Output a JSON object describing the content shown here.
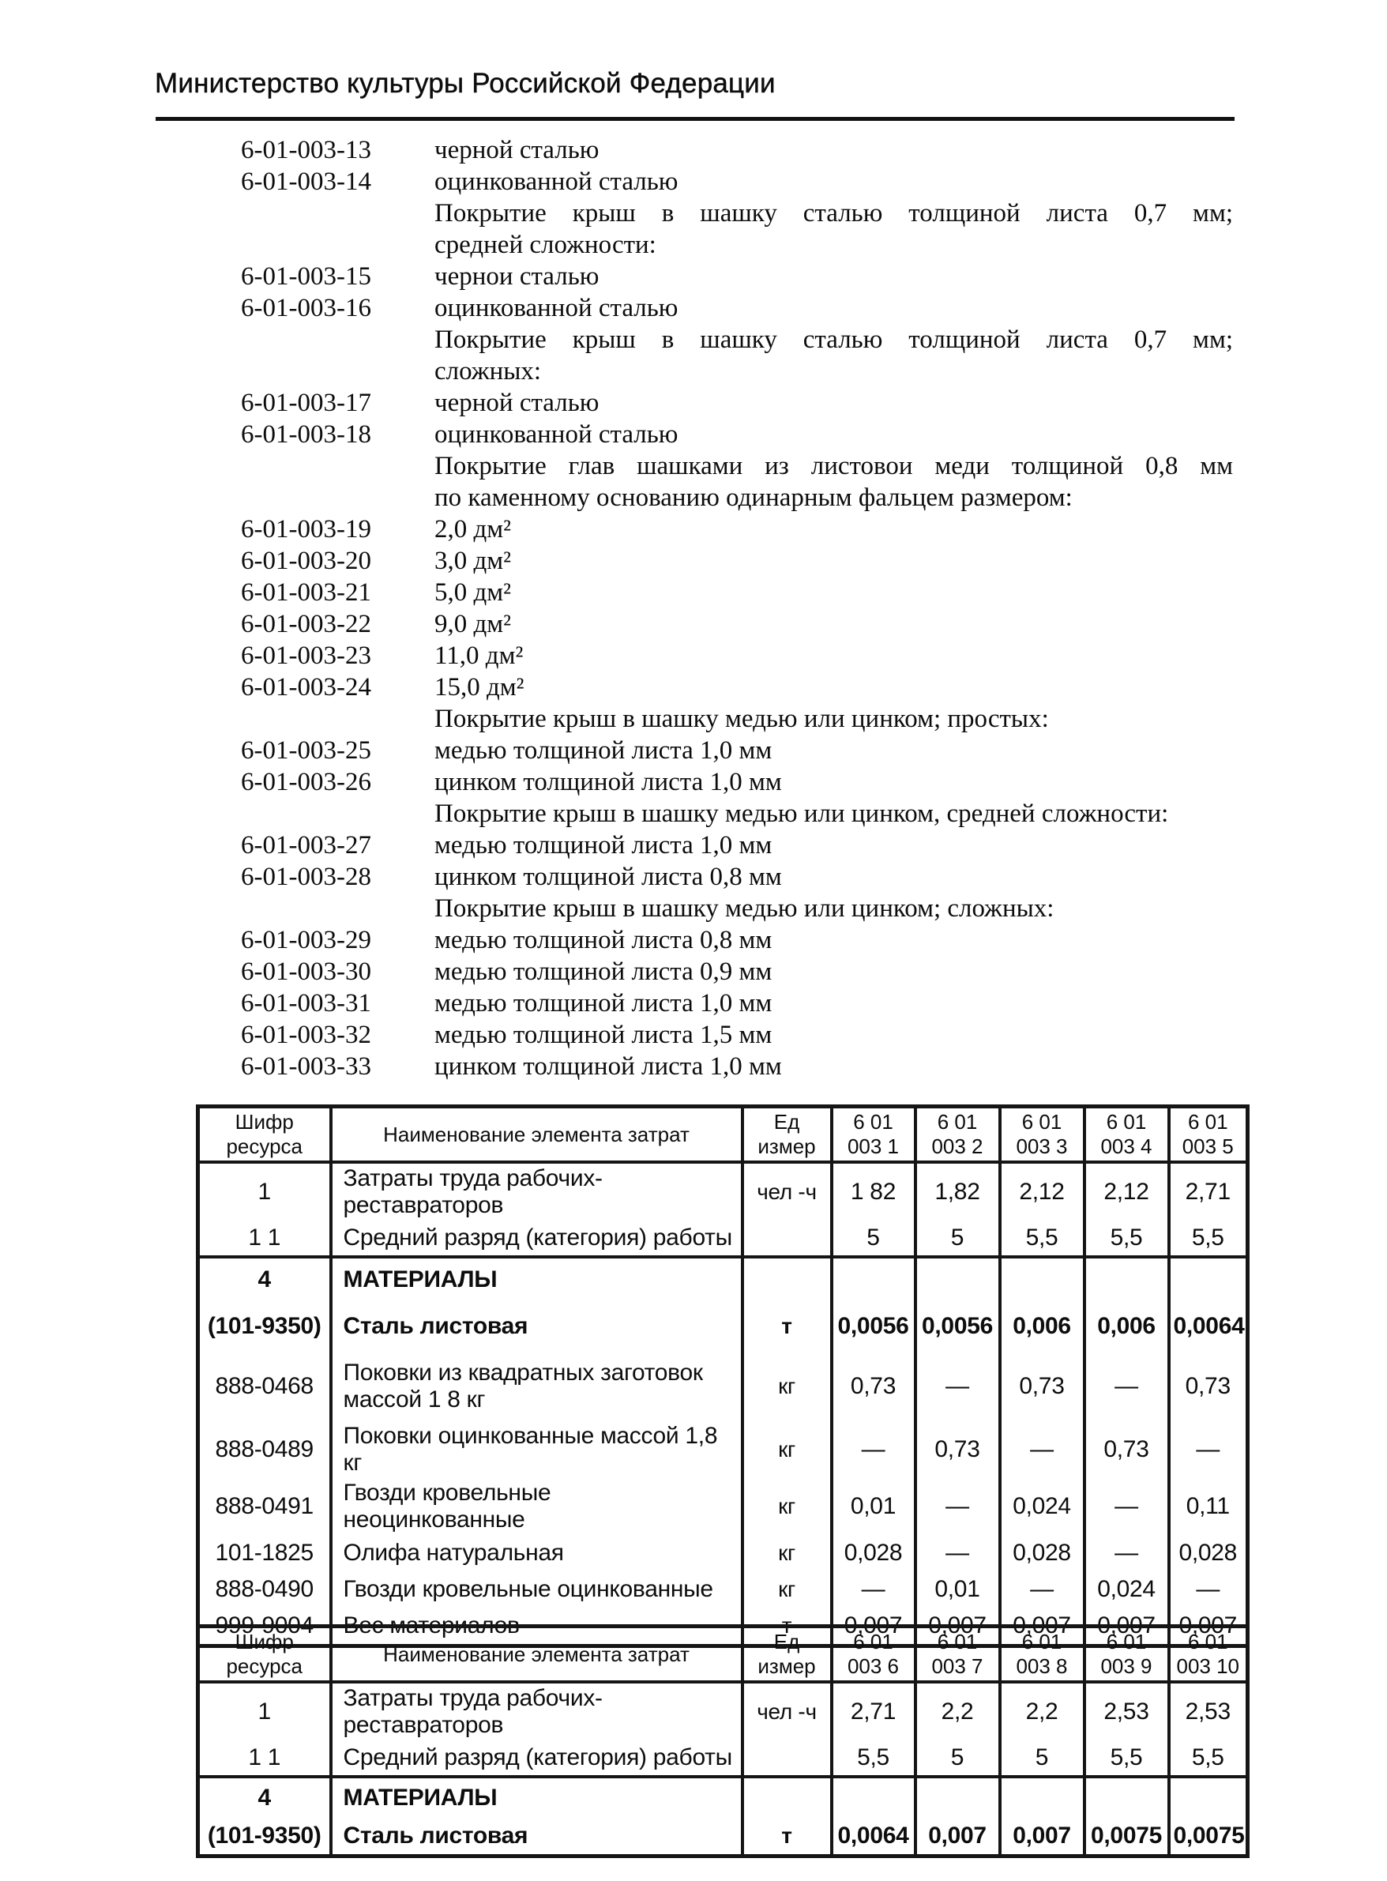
{
  "header": {
    "title": "Министерство культуры Российской Федерации"
  },
  "catalog": {
    "lines": [
      {
        "type": "item",
        "code": "6-01-003-13",
        "text": "черной сталью"
      },
      {
        "type": "item",
        "code": "6-01-003-14",
        "text": "оцинкованной сталью"
      },
      {
        "type": "group",
        "text": "Покрытие крыш в шашку сталью толщиной листа 0,7 мм;",
        "justify": true
      },
      {
        "type": "group",
        "text": "средней сложности:"
      },
      {
        "type": "item",
        "code": "6-01-003-15",
        "text": "чернои сталью"
      },
      {
        "type": "item",
        "code": "6-01-003-16",
        "text": "оцинкованной сталью"
      },
      {
        "type": "group",
        "text": "Покрытие крыш в шашку сталью толщиной листа 0,7 мм;",
        "justify": true
      },
      {
        "type": "group",
        "text": "сложных:"
      },
      {
        "type": "item",
        "code": "6-01-003-17",
        "text": "черной сталью"
      },
      {
        "type": "item",
        "code": "6-01-003-18",
        "text": "оцинкованной сталью"
      },
      {
        "type": "group",
        "text": "Покрытие глав шашками из листовои меди толщиной 0,8 мм",
        "justify": true
      },
      {
        "type": "group",
        "text": "по каменному основанию одинарным фальцем размером:"
      },
      {
        "type": "item",
        "code": "6-01-003-19",
        "text": "2,0 дм²"
      },
      {
        "type": "item",
        "code": "6-01-003-20",
        "text": "3,0 дм²"
      },
      {
        "type": "item",
        "code": "6-01-003-21",
        "text": "5,0 дм²"
      },
      {
        "type": "item",
        "code": "6-01-003-22",
        "text": "9,0 дм²"
      },
      {
        "type": "item",
        "code": "6-01-003-23",
        "text": "11,0 дм²"
      },
      {
        "type": "item",
        "code": "6-01-003-24",
        "text": "15,0 дм²"
      },
      {
        "type": "group",
        "text": "Покрытие крыш в шашку медью или цинком; простых:"
      },
      {
        "type": "item",
        "code": "6-01-003-25",
        "text": "медью толщиной листа 1,0 мм"
      },
      {
        "type": "item",
        "code": "6-01-003-26",
        "text": "цинком толщиной листа 1,0 мм"
      },
      {
        "type": "group",
        "text": "Покрытие крыш в шашку медью или цинком, средней сложности:"
      },
      {
        "type": "item",
        "code": "6-01-003-27",
        "text": "медью толщиной листа 1,0 мм"
      },
      {
        "type": "item",
        "code": "6-01-003-28",
        "text": "цинком толщиной листа 0,8 мм"
      },
      {
        "type": "group",
        "text": "Покрытие крыш в шашку медью или цинком; сложных:"
      },
      {
        "type": "item",
        "code": "6-01-003-29",
        "text": "медью толщиной листа 0,8 мм"
      },
      {
        "type": "item",
        "code": "6-01-003-30",
        "text": "медью толщиной листа 0,9 мм"
      },
      {
        "type": "item",
        "code": "6-01-003-31",
        "text": "медью толщиной листа 1,0 мм"
      },
      {
        "type": "item",
        "code": "6-01-003-32",
        "text": "медью толщиной листа 1,5 мм"
      },
      {
        "type": "item",
        "code": "6-01-003-33",
        "text": "цинком толщиной листа 1,0 мм"
      }
    ]
  },
  "tables": [
    {
      "headers": {
        "code": "Шифр\nресурса",
        "name": "Наименование элемента затрат",
        "unit": "Ед\nизмер",
        "cols": [
          "6 01\n003 1",
          "6 01\n003 2",
          "6 01\n003 3",
          "6 01\n003 4",
          "6 01\n003 5"
        ]
      },
      "rows": [
        {
          "code": "1",
          "name": "Затраты труда рабочих-реставраторов",
          "unit": "чел -ч",
          "values": [
            "1 82",
            "1,82",
            "2,12",
            "2,12",
            "2,71"
          ]
        },
        {
          "code": "1 1",
          "name": "Средний разряд (категория) работы",
          "unit": "",
          "values": [
            "5",
            "5",
            "5,5",
            "5,5",
            "5,5"
          ],
          "border_after": true
        },
        {
          "code": "4",
          "name": "МАТЕРИАЛЫ",
          "unit": "",
          "values": [
            "",
            "",
            "",
            "",
            ""
          ],
          "bold": true
        },
        {
          "code": "(101-9350)",
          "name": "Сталь листовая",
          "unit": "т",
          "values": [
            "0,0056",
            "0,0056",
            "0,006",
            "0,006",
            "0,0064"
          ],
          "bold": true
        },
        {
          "code": "888-0468",
          "name": "Поковки из квадратных заготовок массой 1 8 кг",
          "unit": "кг",
          "values": [
            "0,73",
            "—",
            "0,73",
            "—",
            "0,73"
          ]
        },
        {
          "code": "888-0489",
          "name": "Поковки оцинкованные массой 1,8 кг",
          "unit": "кг",
          "values": [
            "—",
            "0,73",
            "—",
            "0,73",
            "—"
          ]
        },
        {
          "code": "888-0491",
          "name": "Гвозди кровельные неоцинкованные",
          "unit": "кг",
          "values": [
            "0,01",
            "—",
            "0,024",
            "—",
            "0,11"
          ]
        },
        {
          "code": "101-1825",
          "name": "Олифа натуральная",
          "unit": "кг",
          "values": [
            "0,028",
            "—",
            "0,028",
            "—",
            "0,028"
          ]
        },
        {
          "code": "888-0490",
          "name": "Гвозди кровельные оцинкованные",
          "unit": "кг",
          "values": [
            "—",
            "0,01",
            "—",
            "0,024",
            "—"
          ]
        },
        {
          "code": "999-9004",
          "name": "Вес материалов",
          "unit": "т",
          "values": [
            "0,007",
            "0,007",
            "0,007",
            "0,007",
            "0,007"
          ]
        }
      ]
    },
    {
      "headers": {
        "code": "Шифр\nресурса",
        "name": "Наименование элемента затрат",
        "unit": "Ед\nизмер",
        "cols": [
          "6 01\n003 6",
          "6 01\n003 7",
          "6 01\n003 8",
          "6 01\n003 9",
          "6 01\n003 10"
        ]
      },
      "rows": [
        {
          "code": "1",
          "name": "Затраты труда рабочих-реставраторов",
          "unit": "чел -ч",
          "values": [
            "2,71",
            "2,2",
            "2,2",
            "2,53",
            "2,53"
          ]
        },
        {
          "code": "1 1",
          "name": "Средний разряд (категория) работы",
          "unit": "",
          "values": [
            "5,5",
            "5",
            "5",
            "5,5",
            "5,5"
          ],
          "border_after": true
        },
        {
          "code": "4",
          "name": "МАТЕРИАЛЫ",
          "unit": "",
          "values": [
            "",
            "",
            "",
            "",
            ""
          ],
          "bold": true
        },
        {
          "code": "(101-9350)",
          "name": "Сталь листовая",
          "unit": "т",
          "values": [
            "0,0064",
            "0,007",
            "0,007",
            "0,0075",
            "0,0075"
          ],
          "bold": true
        }
      ]
    }
  ]
}
